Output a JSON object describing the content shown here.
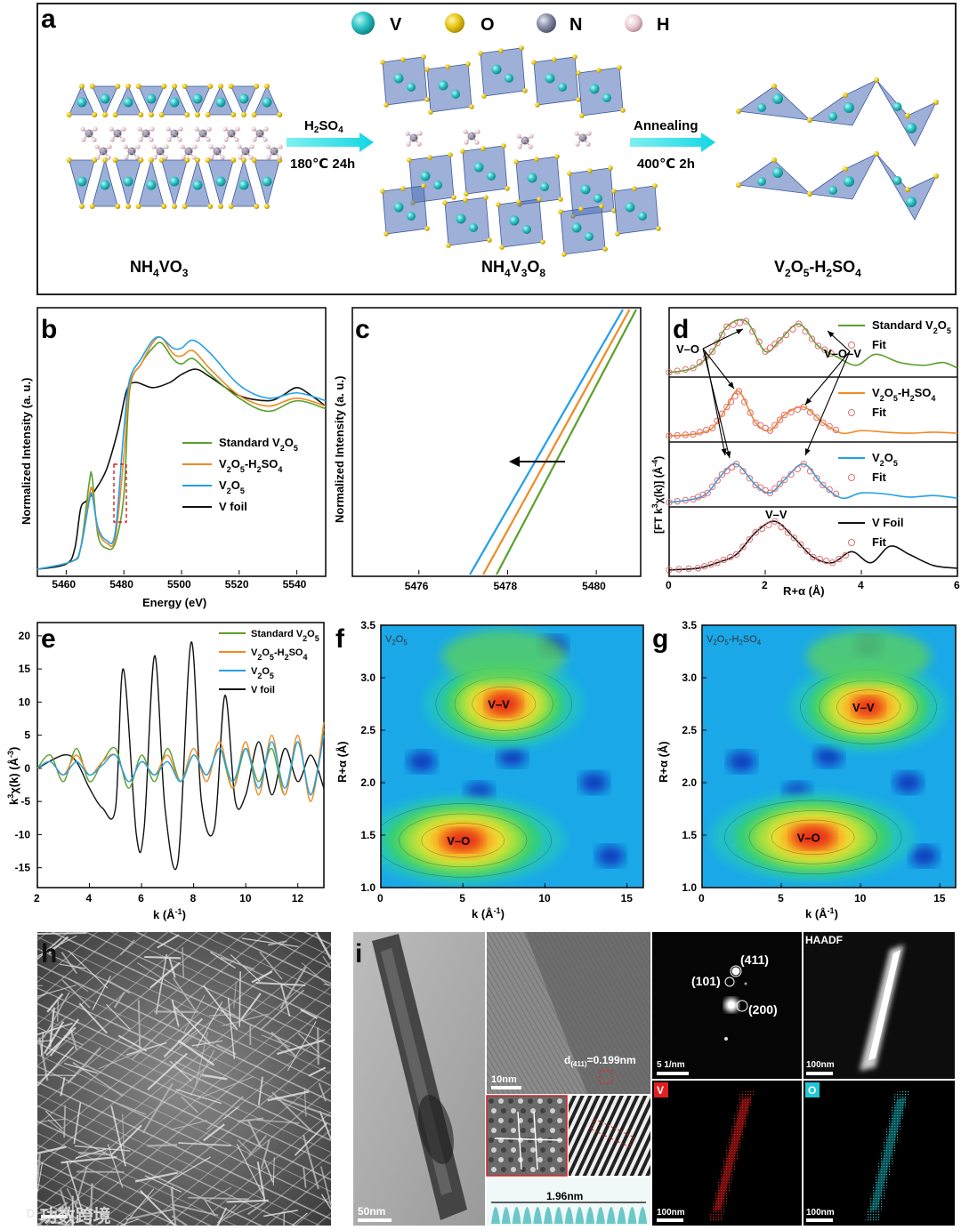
{
  "panels": {
    "a": {
      "label": "a",
      "legend": [
        "V",
        "O",
        "N",
        "H"
      ],
      "colors": {
        "V": "#2ec4c4",
        "O": "#e8c81a",
        "N": "#8a8fa8",
        "H": "#e8c8d0"
      },
      "names": [
        "NH4VO3",
        "NH4V3O8",
        "V2O5-H2SO4"
      ],
      "step1_top": "H2SO4",
      "step1_bot": "180℃ 24h",
      "step2_top": "Annealing",
      "step2_bot": "400℃ 2h"
    },
    "b": {
      "label": "b"
    },
    "c": {
      "label": "c"
    },
    "d": {
      "label": "d"
    },
    "e": {
      "label": "e"
    },
    "f": {
      "label": "f",
      "sample": "V2O5",
      "peak1": "V–V",
      "peak2": "V–O"
    },
    "g": {
      "label": "g",
      "sample": "V2O5-H2SO4",
      "peak1": "V–V",
      "peak2": "V–O"
    },
    "h": {
      "label": "h"
    },
    "i": {
      "label": "i",
      "spacing": "d(411)=0.199nm",
      "fringe": "1.96nm",
      "haadf": "HAADF",
      "saed": [
        "(411)",
        "(101)",
        "(200)"
      ],
      "scales": {
        "tem": "50nm",
        "hrtem": "10nm",
        "saed": "5 1/nm",
        "haadf": "100nm",
        "mapV": "100nm",
        "mapO": "100nm"
      },
      "maps": [
        "V",
        "O"
      ]
    },
    "watermark": "功数跨境"
  },
  "legend_xanes": [
    "Standard V2O5",
    "V2O5-H2SO4",
    "V2O5",
    "V foil"
  ],
  "legend_ft": [
    "Standard V2O5",
    "V2O5-H2SO4",
    "V2O5",
    "V Foil"
  ],
  "fit_label": "Fit",
  "series_colors": {
    "std": "#5aa02c",
    "h2so4": "#f08a24",
    "v2o5": "#22a0e8",
    "vfoil": "#111111",
    "fit": "#e07070"
  },
  "chart_data": [
    {
      "type": "line",
      "panel": "b",
      "title": "",
      "xlabel": "Energy (eV)",
      "ylabel": "Normalized Intensity (a. u.)",
      "xlim": [
        5450,
        5550
      ],
      "xticks": [
        5460,
        5480,
        5500,
        5520,
        5540
      ],
      "series": [
        {
          "name": "Standard V2O5",
          "x": [
            5450,
            5462,
            5465,
            5468,
            5469,
            5471,
            5474,
            5477,
            5480,
            5482,
            5486,
            5490,
            5493,
            5497,
            5500,
            5504,
            5510,
            5520,
            5530,
            5540,
            5550
          ],
          "y": [
            0.02,
            0.05,
            0.1,
            0.35,
            0.37,
            0.15,
            0.1,
            0.12,
            0.3,
            0.7,
            0.8,
            0.86,
            0.88,
            0.82,
            0.8,
            0.82,
            0.76,
            0.67,
            0.62,
            0.66,
            0.63
          ]
        },
        {
          "name": "V2O5-H2SO4",
          "x": [
            5450,
            5462,
            5465,
            5468,
            5469,
            5471,
            5474,
            5477,
            5480,
            5482,
            5486,
            5490,
            5493,
            5497,
            5500,
            5504,
            5510,
            5520,
            5530,
            5540,
            5550
          ],
          "y": [
            0.02,
            0.05,
            0.1,
            0.3,
            0.32,
            0.17,
            0.12,
            0.14,
            0.45,
            0.72,
            0.8,
            0.88,
            0.9,
            0.84,
            0.83,
            0.85,
            0.78,
            0.68,
            0.64,
            0.67,
            0.64
          ]
        },
        {
          "name": "V2O5",
          "x": [
            5450,
            5462,
            5465,
            5468,
            5469,
            5471,
            5474,
            5477,
            5480,
            5482,
            5486,
            5490,
            5493,
            5497,
            5500,
            5504,
            5510,
            5520,
            5530,
            5540,
            5550
          ],
          "y": [
            0.02,
            0.05,
            0.1,
            0.28,
            0.3,
            0.18,
            0.13,
            0.16,
            0.55,
            0.74,
            0.82,
            0.89,
            0.9,
            0.86,
            0.86,
            0.89,
            0.84,
            0.72,
            0.67,
            0.69,
            0.66
          ]
        },
        {
          "name": "V foil",
          "x": [
            5450,
            5460,
            5463,
            5465,
            5467,
            5470,
            5474,
            5478,
            5481,
            5484,
            5490,
            5496,
            5500,
            5505,
            5510,
            5520,
            5530,
            5535,
            5540,
            5545,
            5550
          ],
          "y": [
            0.02,
            0.04,
            0.1,
            0.25,
            0.28,
            0.32,
            0.4,
            0.55,
            0.7,
            0.73,
            0.71,
            0.73,
            0.76,
            0.78,
            0.75,
            0.68,
            0.66,
            0.68,
            0.71,
            0.68,
            0.64
          ]
        }
      ]
    },
    {
      "type": "line",
      "panel": "c",
      "title": "",
      "xlabel": "",
      "ylabel": "Normalized Intensity (a. u.)",
      "xlim": [
        5474.5,
        5481
      ],
      "xticks": [
        5476,
        5478,
        5480
      ],
      "series": [
        {
          "name": "V2O5",
          "x": [
            5477.15,
            5480.6
          ],
          "y": [
            0,
            1
          ]
        },
        {
          "name": "V2O5-H2SO4",
          "x": [
            5477.45,
            5480.75
          ],
          "y": [
            0,
            1
          ]
        },
        {
          "name": "Standard V2O5",
          "x": [
            5477.75,
            5480.9
          ],
          "y": [
            0,
            1
          ]
        }
      ]
    },
    {
      "type": "line",
      "panel": "d",
      "title": "",
      "xlabel": "R+α (Å)",
      "ylabel": "[FT k3χ(k)] (Å-4)",
      "xlim": [
        0,
        6
      ],
      "xticks": [
        0,
        2,
        4,
        6
      ],
      "annotations": [
        "V–O",
        "V–O–V",
        "V–V"
      ],
      "series": [
        {
          "name": "Standard V2O5",
          "x": [
            0,
            0.5,
            0.9,
            1.2,
            1.6,
            2.0,
            2.3,
            2.7,
            3.1,
            3.5,
            3.9,
            4.3,
            4.8,
            5.3,
            5.7,
            6
          ],
          "y": [
            0.02,
            0.1,
            0.4,
            0.85,
            0.95,
            0.4,
            0.6,
            0.9,
            0.5,
            0.3,
            0.15,
            0.35,
            0.2,
            0.15,
            0.2,
            0.1
          ]
        },
        {
          "name": "V2O5-H2SO4",
          "x": [
            0,
            0.5,
            0.9,
            1.2,
            1.45,
            1.8,
            2.1,
            2.4,
            2.8,
            3.2,
            3.6,
            4.0,
            4.5,
            5.0,
            5.5,
            6
          ],
          "y": [
            0.05,
            0.08,
            0.2,
            0.6,
            0.9,
            0.3,
            0.15,
            0.45,
            0.6,
            0.3,
            0.1,
            0.15,
            0.12,
            0.1,
            0.12,
            0.1
          ]
        },
        {
          "name": "V2O5",
          "x": [
            0,
            0.5,
            0.8,
            1.1,
            1.4,
            1.8,
            2.1,
            2.4,
            2.8,
            3.2,
            3.6,
            4.0,
            4.5,
            5.0,
            5.5,
            6
          ],
          "y": [
            0.02,
            0.08,
            0.2,
            0.55,
            0.75,
            0.35,
            0.2,
            0.45,
            0.75,
            0.35,
            0.1,
            0.2,
            0.18,
            0.12,
            0.15,
            0.1
          ]
        },
        {
          "name": "V Foil",
          "x": [
            0,
            0.6,
            1.0,
            1.4,
            1.8,
            2.2,
            2.6,
            3.0,
            3.4,
            3.8,
            4.2,
            4.6,
            5.0,
            5.5,
            6
          ],
          "y": [
            0.02,
            0.05,
            0.15,
            0.3,
            0.7,
            0.9,
            0.6,
            0.25,
            0.15,
            0.35,
            0.15,
            0.45,
            0.3,
            0.1,
            0.05
          ]
        }
      ]
    },
    {
      "type": "line",
      "panel": "e",
      "title": "",
      "xlabel": "k (Å-1)",
      "ylabel": "k3χ(k) (Å-3)",
      "xlim": [
        2,
        13
      ],
      "ylim": [
        -18,
        22
      ],
      "xticks": [
        2,
        4,
        6,
        8,
        10,
        12
      ],
      "yticks": [
        -15,
        -10,
        -5,
        0,
        5,
        10,
        15,
        20
      ],
      "series": [
        {
          "name": "Standard V2O5",
          "x": [
            2,
            2.5,
            3,
            3.5,
            4,
            4.5,
            5,
            5.5,
            6,
            6.5,
            7,
            7.5,
            8,
            8.5,
            9,
            9.5,
            10,
            10.5,
            11,
            11.5,
            12,
            12.5,
            13
          ],
          "y": [
            0,
            2,
            -2,
            3,
            -2,
            1,
            3,
            -3,
            2,
            -2,
            3,
            -2,
            2,
            -1,
            3,
            -3,
            3,
            -2,
            3,
            -4,
            4,
            -4,
            6
          ]
        },
        {
          "name": "V2O5-H2SO4",
          "x": [
            2,
            2.5,
            3,
            3.5,
            4,
            4.5,
            5,
            5.5,
            6,
            6.5,
            7,
            7.5,
            8,
            8.5,
            9,
            9.5,
            10,
            10.5,
            11,
            11.5,
            12,
            12.5,
            13
          ],
          "y": [
            0,
            1,
            -1,
            2,
            -1,
            1,
            2,
            -2,
            1,
            -1,
            2,
            -2,
            3,
            -2,
            4,
            -3,
            4,
            -4,
            5,
            -4,
            5,
            -5,
            7
          ]
        },
        {
          "name": "V2O5",
          "x": [
            2,
            2.5,
            3,
            3.5,
            4,
            4.5,
            5,
            5.5,
            6,
            6.5,
            7,
            7.5,
            8,
            8.5,
            9,
            9.5,
            10,
            10.5,
            11,
            11.5,
            12,
            12.5,
            13
          ],
          "y": [
            0,
            1,
            -1,
            1,
            -1,
            0.5,
            2,
            -2,
            1,
            -1,
            1,
            -2,
            2,
            -1,
            3,
            -2,
            3,
            -3,
            4,
            -3,
            4,
            -4,
            5
          ]
        },
        {
          "name": "V foil",
          "x": [
            2,
            3,
            3.5,
            4,
            4.5,
            5,
            5.3,
            5.8,
            6.1,
            6.5,
            6.9,
            7.4,
            7.9,
            8.3,
            8.8,
            9.2,
            9.6,
            10,
            10.5,
            11,
            11.5,
            12,
            12.5,
            13
          ],
          "y": [
            0,
            2,
            1,
            -3,
            -6,
            -6,
            15,
            -10,
            -9,
            17,
            -6,
            -14,
            19,
            -5,
            -9,
            11,
            -5,
            -4,
            4,
            -4,
            3,
            -2,
            2,
            -3
          ]
        }
      ]
    },
    {
      "type": "heatmap",
      "panel": "f",
      "title": "V2O5",
      "xlabel": "k (Å-1)",
      "ylabel": "R+α (Å)",
      "xlim": [
        0,
        16
      ],
      "ylim": [
        1.0,
        3.5
      ],
      "xticks": [
        0,
        5,
        10,
        15
      ],
      "yticks": [
        1.0,
        1.5,
        2.0,
        2.5,
        3.0,
        3.5
      ],
      "peaks": [
        {
          "label": "V–V",
          "k": 7.5,
          "r": 2.75,
          "intensity": 1.0
        },
        {
          "label": "V–O",
          "k": 5,
          "r": 1.45,
          "intensity": 0.95
        }
      ]
    },
    {
      "type": "heatmap",
      "panel": "g",
      "title": "V2O5-H2SO4",
      "xlabel": "k (Å-1)",
      "ylabel": "R+α (Å)",
      "xlim": [
        0,
        16
      ],
      "ylim": [
        1.0,
        3.5
      ],
      "xticks": [
        0,
        5,
        10,
        15
      ],
      "yticks": [
        1.0,
        1.5,
        2.0,
        2.5,
        3.0,
        3.5
      ],
      "peaks": [
        {
          "label": "V–V",
          "k": 10.5,
          "r": 2.72,
          "intensity": 0.85
        },
        {
          "label": "V–O",
          "k": 7,
          "r": 1.48,
          "intensity": 1.0
        }
      ]
    }
  ]
}
